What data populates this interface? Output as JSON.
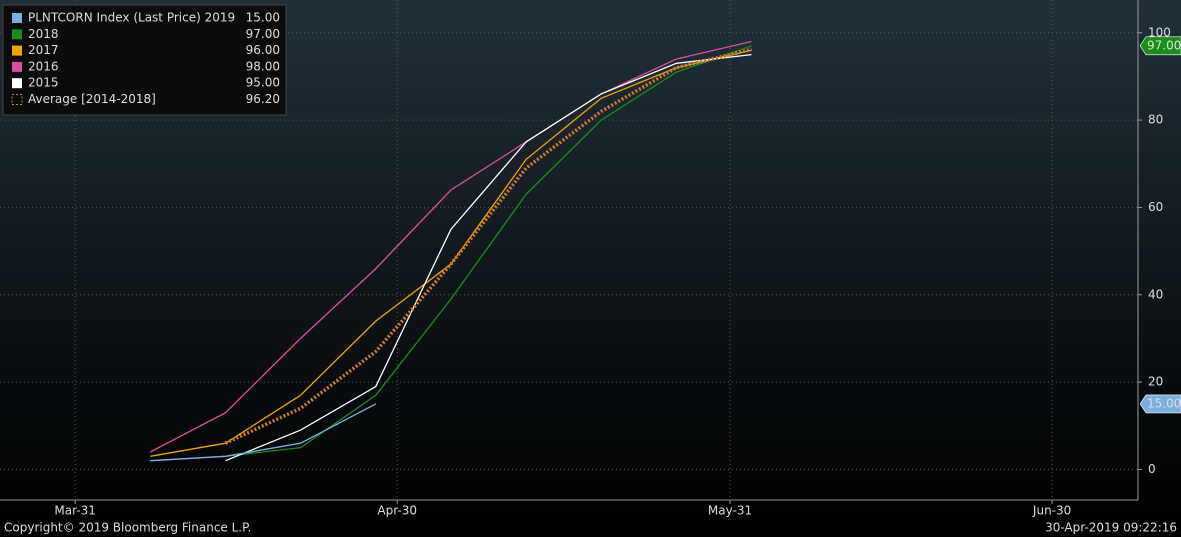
{
  "chart_data": {
    "type": "line",
    "x": [
      "Apr-07",
      "Apr-14",
      "Apr-21",
      "Apr-28",
      "May-05",
      "May-12",
      "May-19",
      "May-26",
      "Jun-02"
    ],
    "xlim": [
      "Mar-24",
      "Jul-08"
    ],
    "xticks": [
      "Mar-31",
      "Apr-30",
      "May-31",
      "Jun-30"
    ],
    "ylim": [
      -7,
      107.5
    ],
    "yticks": [
      0,
      20,
      40,
      60,
      80,
      100
    ],
    "grid": true,
    "series": [
      {
        "name": "PLNTCORN Index (Last Price) 2019",
        "legend_value": "15.00",
        "color": "#7ab0e0",
        "tag": true,
        "values": [
          2,
          3,
          6,
          15,
          null,
          null,
          null,
          null,
          null
        ]
      },
      {
        "name": "2018",
        "legend_value": "97.00",
        "color": "#1a8c1a",
        "tag": true,
        "values": [
          2,
          3,
          5,
          17,
          39,
          63,
          80,
          91,
          97
        ]
      },
      {
        "name": "2017",
        "legend_value": "96.00",
        "color": "#f0a30a",
        "values": [
          3,
          6,
          17,
          34,
          47,
          71,
          85,
          92,
          96
        ]
      },
      {
        "name": "2016",
        "legend_value": "98.00",
        "color": "#d94fa0",
        "values": [
          4,
          13,
          30,
          46,
          64,
          75,
          86,
          94,
          98
        ]
      },
      {
        "name": "2015",
        "legend_value": "95.00",
        "color": "#ffffff",
        "values": [
          null,
          2,
          9,
          19,
          55,
          75,
          86,
          93,
          95
        ]
      },
      {
        "name": "Average [2014-2018]",
        "legend_value": "96.20",
        "color": "#d07a30",
        "dotted": true,
        "values": [
          null,
          6,
          14,
          27,
          47,
          69,
          82,
          92,
          96.2
        ]
      }
    ],
    "footer_left": "Copyright© 2019 Bloomberg Finance L.P.",
    "footer_right": "30-Apr-2019 09:22:16"
  }
}
